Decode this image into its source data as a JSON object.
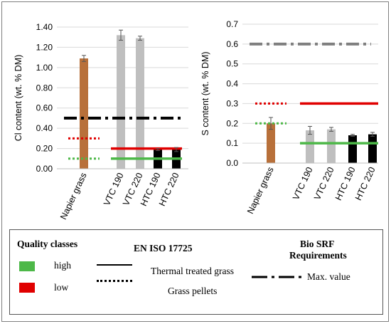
{
  "chart_data": [
    {
      "type": "bar",
      "ylabel": "Cl content (wt. % DM)",
      "categories": [
        "Napier grass",
        "VTC 190",
        "VTC 220",
        "HTC 190",
        "HTC 220"
      ],
      "values": [
        1.09,
        1.32,
        1.29,
        0.19,
        0.19
      ],
      "errors": [
        0.03,
        0.05,
        0.02,
        0.01,
        0.02
      ],
      "bar_colors": [
        "#b8703a",
        "#bfbfbf",
        "#bfbfbf",
        "#000000",
        "#000000"
      ],
      "ylim": [
        0,
        1.4
      ],
      "yticks": [
        "0.00",
        "0.20",
        "0.40",
        "0.60",
        "0.80",
        "1.00",
        "1.20",
        "1.40"
      ],
      "grid": true,
      "reference_lines": [
        {
          "label": "Max. value",
          "class": "Bio SRF Requirements",
          "value": 0.5,
          "span": "all",
          "style": "dash-dot",
          "color": "#000000"
        },
        {
          "label": "low",
          "class": "Grass pellets",
          "value": 0.3,
          "span": "Napier grass",
          "style": "dotted",
          "color": "#e00000"
        },
        {
          "label": "high",
          "class": "Grass pellets",
          "value": 0.1,
          "span": "Napier grass",
          "style": "dotted",
          "color": "#4db848"
        },
        {
          "label": "low",
          "class": "Thermal treated grass",
          "value": 0.2,
          "span": "VTC 190-HTC 220",
          "style": "solid",
          "color": "#e00000"
        },
        {
          "label": "high",
          "class": "Thermal treated grass",
          "value": 0.1,
          "span": "VTC 190-HTC 220",
          "style": "solid",
          "color": "#4db848"
        }
      ]
    },
    {
      "type": "bar",
      "ylabel": "S content (wt. % DM)",
      "categories": [
        "Napier grass",
        "VTC 190",
        "VTC 220",
        "HTC 190",
        "HTC 220"
      ],
      "values": [
        0.2,
        0.165,
        0.17,
        0.14,
        0.145
      ],
      "errors": [
        0.03,
        0.02,
        0.01,
        0.005,
        0.01
      ],
      "bar_colors": [
        "#b8703a",
        "#bfbfbf",
        "#bfbfbf",
        "#000000",
        "#000000"
      ],
      "ylim": [
        0,
        0.7
      ],
      "yticks": [
        "0.0",
        "0.1",
        "0.2",
        "0.3",
        "0.4",
        "0.5",
        "0.6",
        "0.7"
      ],
      "grid": true,
      "reference_lines": [
        {
          "label": "Max. value",
          "class": "Bio SRF Requirements",
          "value": 0.6,
          "span": "all",
          "style": "dash-dot",
          "color": "#7f7f7f"
        },
        {
          "label": "low",
          "class": "Grass pellets",
          "value": 0.3,
          "span": "Napier grass",
          "style": "dotted",
          "color": "#e00000"
        },
        {
          "label": "high",
          "class": "Grass pellets",
          "value": 0.2,
          "span": "Napier grass",
          "style": "dotted",
          "color": "#4db848"
        },
        {
          "label": "low",
          "class": "Thermal treated grass",
          "value": 0.3,
          "span": "VTC 190-HTC 220",
          "style": "solid",
          "color": "#e00000"
        },
        {
          "label": "high",
          "class": "Thermal treated grass",
          "value": 0.1,
          "span": "VTC 190-HTC 220",
          "style": "solid",
          "color": "#4db848"
        }
      ]
    }
  ],
  "legend": {
    "quality_title": "Quality classes",
    "high_label": "high",
    "low_label": "low",
    "high_color": "#4db848",
    "low_color": "#e00000",
    "standard_title": "EN ISO 17725",
    "solid_label": "Thermal treated grass",
    "dotted_label": "Grass pellets",
    "srf_title_line1": "Bio SRF",
    "srf_title_line2": "Requirements",
    "dashdot_label": "Max. value"
  }
}
